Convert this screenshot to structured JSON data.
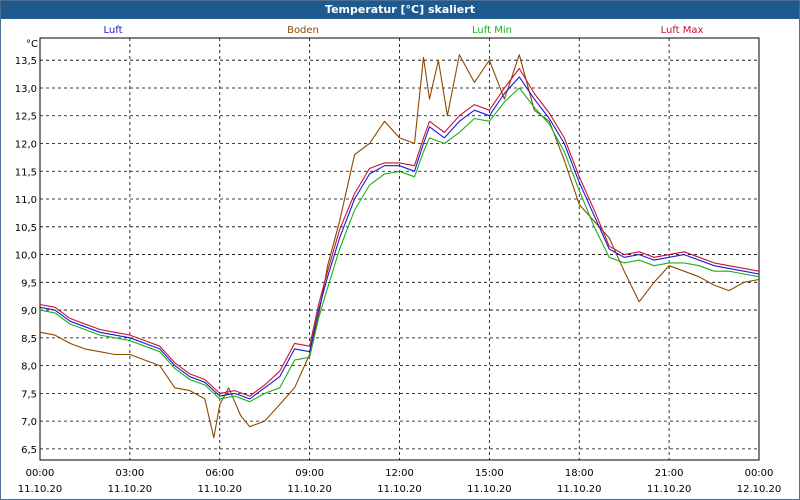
{
  "window": {
    "title": "Temperatur [°C] skaliert"
  },
  "chart_data": {
    "type": "line",
    "title": "Temperatur [°C] skaliert",
    "ylabel": "°C",
    "xlabel": "",
    "ylim": [
      6.3,
      13.9
    ],
    "xlim": [
      0,
      24
    ],
    "grid": true,
    "legend_position": "top",
    "y_ticks": [
      "6,5",
      "7,0",
      "7,5",
      "8,0",
      "8,5",
      "9,0",
      "9,5",
      "10,0",
      "10,5",
      "11,0",
      "11,5",
      "12,0",
      "12,5",
      "13,0",
      "13,5"
    ],
    "y_tick_values": [
      6.5,
      7.0,
      7.5,
      8.0,
      8.5,
      9.0,
      9.5,
      10.0,
      10.5,
      11.0,
      11.5,
      12.0,
      12.5,
      13.0,
      13.5
    ],
    "x_ticks": [
      {
        "time": "00:00",
        "date": "11.10.20"
      },
      {
        "time": "03:00",
        "date": "11.10.20"
      },
      {
        "time": "06:00",
        "date": "11.10.20"
      },
      {
        "time": "09:00",
        "date": "11.10.20"
      },
      {
        "time": "12:00",
        "date": "11.10.20"
      },
      {
        "time": "15:00",
        "date": "11.10.20"
      },
      {
        "time": "18:00",
        "date": "11.10.20"
      },
      {
        "time": "21:00",
        "date": "11.10.20"
      },
      {
        "time": "00:00",
        "date": "12.10.20"
      }
    ],
    "series": [
      {
        "name": "Luft",
        "color": "#1a1adc",
        "x": [
          0,
          0.5,
          1,
          1.5,
          2,
          2.5,
          3,
          3.5,
          4,
          4.5,
          5,
          5.5,
          6,
          6.5,
          7,
          7.5,
          8,
          8.5,
          9,
          9.3,
          9.6,
          10,
          10.5,
          11,
          11.5,
          12,
          12.5,
          12.8,
          13,
          13.5,
          14,
          14.5,
          15,
          15.5,
          16,
          16.5,
          17,
          17.5,
          18,
          18.5,
          19,
          19.5,
          20,
          20.5,
          21,
          21.5,
          22,
          22.5,
          23,
          23.5,
          24
        ],
        "y": [
          9.05,
          9.0,
          8.8,
          8.7,
          8.6,
          8.55,
          8.5,
          8.4,
          8.3,
          8.0,
          7.8,
          7.7,
          7.45,
          7.5,
          7.4,
          7.6,
          7.8,
          8.3,
          8.25,
          9.0,
          9.6,
          10.3,
          11.0,
          11.45,
          11.6,
          11.6,
          11.5,
          12.0,
          12.3,
          12.1,
          12.4,
          12.6,
          12.5,
          12.9,
          13.2,
          12.8,
          12.45,
          12.0,
          11.3,
          10.7,
          10.1,
          9.95,
          10.0,
          9.9,
          9.95,
          10.0,
          9.9,
          9.8,
          9.75,
          9.7,
          9.65
        ]
      },
      {
        "name": "Boden",
        "color": "#8b4a00",
        "x": [
          0,
          0.5,
          1,
          1.5,
          2,
          2.5,
          3,
          3.5,
          4,
          4.5,
          5,
          5.5,
          5.8,
          6,
          6.3,
          6.7,
          7,
          7.5,
          8,
          8.5,
          9,
          9.3,
          9.6,
          10,
          10.5,
          11,
          11.5,
          12,
          12.5,
          12.8,
          13,
          13.3,
          13.6,
          14,
          14.5,
          15,
          15.5,
          16,
          16.5,
          17,
          17.5,
          18,
          18.5,
          19,
          19.5,
          20,
          20.5,
          21,
          21.5,
          22,
          22.5,
          23,
          23.5,
          24
        ],
        "y": [
          8.6,
          8.55,
          8.4,
          8.3,
          8.25,
          8.2,
          8.2,
          8.1,
          8.0,
          7.6,
          7.55,
          7.4,
          6.7,
          7.3,
          7.6,
          7.1,
          6.9,
          7.0,
          7.3,
          7.6,
          8.2,
          8.9,
          9.8,
          10.6,
          11.8,
          12.0,
          12.4,
          12.1,
          12.0,
          13.55,
          12.8,
          13.5,
          12.5,
          13.6,
          13.1,
          13.5,
          12.8,
          13.6,
          12.6,
          12.4,
          11.7,
          10.9,
          10.6,
          10.3,
          9.7,
          9.15,
          9.5,
          9.8,
          9.7,
          9.6,
          9.45,
          9.35,
          9.5,
          9.55
        ]
      },
      {
        "name": "Luft Min",
        "color": "#1ab01a",
        "x": [
          0,
          0.5,
          1,
          1.5,
          2,
          2.5,
          3,
          3.5,
          4,
          4.5,
          5,
          5.5,
          6,
          6.5,
          7,
          7.5,
          8,
          8.5,
          9,
          9.3,
          9.6,
          10,
          10.5,
          11,
          11.5,
          12,
          12.5,
          12.8,
          13,
          13.5,
          14,
          14.5,
          15,
          15.5,
          16,
          16.5,
          17,
          17.5,
          18,
          18.5,
          19,
          19.5,
          20,
          20.5,
          21,
          21.5,
          22,
          22.5,
          23,
          23.5,
          24
        ],
        "y": [
          9.0,
          8.95,
          8.75,
          8.65,
          8.55,
          8.5,
          8.45,
          8.35,
          8.25,
          7.95,
          7.75,
          7.65,
          7.4,
          7.45,
          7.35,
          7.5,
          7.6,
          8.1,
          8.15,
          8.85,
          9.4,
          10.1,
          10.8,
          11.25,
          11.45,
          11.5,
          11.4,
          11.85,
          12.1,
          12.0,
          12.2,
          12.45,
          12.4,
          12.75,
          13.0,
          12.65,
          12.35,
          11.85,
          11.15,
          10.5,
          9.95,
          9.85,
          9.9,
          9.8,
          9.85,
          9.85,
          9.8,
          9.7,
          9.7,
          9.65,
          9.6
        ]
      },
      {
        "name": "Luft Max",
        "color": "#c81432",
        "x": [
          0,
          0.5,
          1,
          1.5,
          2,
          2.5,
          3,
          3.5,
          4,
          4.5,
          5,
          5.5,
          6,
          6.5,
          7,
          7.5,
          8,
          8.5,
          9,
          9.3,
          9.6,
          10,
          10.5,
          11,
          11.5,
          12,
          12.5,
          12.8,
          13,
          13.5,
          14,
          14.5,
          15,
          15.5,
          16,
          16.5,
          17,
          17.5,
          18,
          18.5,
          19,
          19.5,
          20,
          20.5,
          21,
          21.5,
          22,
          22.5,
          23,
          23.5,
          24
        ],
        "y": [
          9.1,
          9.05,
          8.85,
          8.75,
          8.65,
          8.6,
          8.55,
          8.45,
          8.35,
          8.05,
          7.85,
          7.75,
          7.5,
          7.55,
          7.45,
          7.65,
          7.9,
          8.4,
          8.35,
          9.1,
          9.7,
          10.45,
          11.1,
          11.55,
          11.65,
          11.65,
          11.6,
          12.1,
          12.4,
          12.2,
          12.5,
          12.7,
          12.6,
          13.0,
          13.35,
          12.9,
          12.55,
          12.1,
          11.4,
          10.8,
          10.15,
          10.0,
          10.05,
          9.95,
          10.0,
          10.05,
          9.95,
          9.85,
          9.8,
          9.75,
          9.7
        ]
      }
    ]
  }
}
